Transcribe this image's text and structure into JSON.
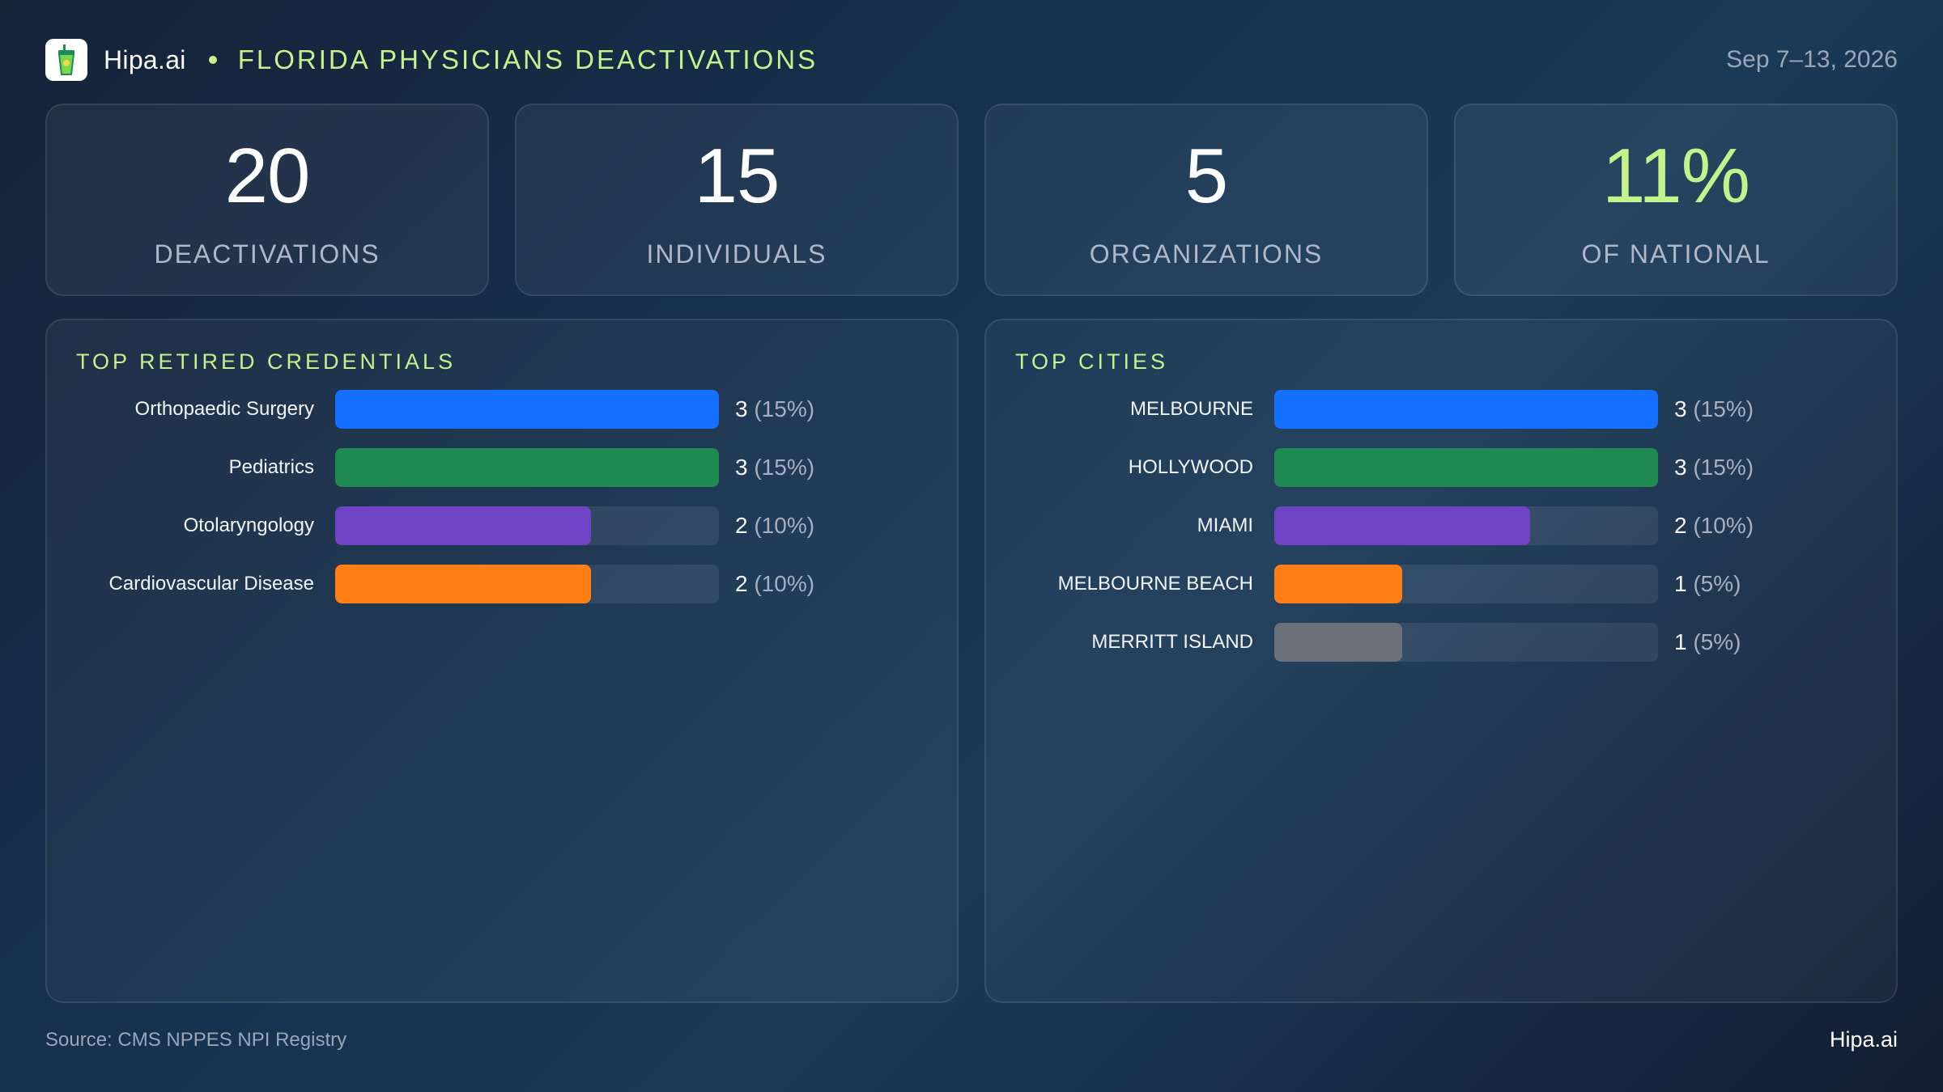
{
  "header": {
    "brand": "Hipa.ai",
    "title": "FLORIDA PHYSICIANS DEACTIVATIONS",
    "date": "Sep 7–13, 2026",
    "accent_color": "#c5f28a"
  },
  "kpis": [
    {
      "value": "20",
      "label": "DEACTIVATIONS"
    },
    {
      "value": "15",
      "label": "INDIVIDUALS"
    },
    {
      "value": "5",
      "label": "ORGANIZATIONS"
    },
    {
      "value": "11%",
      "label": "OF NATIONAL"
    }
  ],
  "chart_data": [
    {
      "type": "bar",
      "orientation": "horizontal",
      "title": "TOP RETIRED CREDENTIALS",
      "categories": [
        "Orthopaedic Surgery",
        "Pediatrics",
        "Otolaryngology",
        "Cardiovascular Disease"
      ],
      "values": [
        3,
        3,
        2,
        2
      ],
      "value_labels": [
        "3",
        "3",
        "2",
        "2"
      ],
      "percent_labels": [
        "(15%)",
        "(15%)",
        "(10%)",
        "(10%)"
      ],
      "colors": [
        "#1570ff",
        "#1e8a52",
        "#6e43c4",
        "#ff7f16"
      ],
      "xlim": [
        0,
        3
      ],
      "grid": false
    },
    {
      "type": "bar",
      "orientation": "horizontal",
      "title": "TOP CITIES",
      "categories": [
        "MELBOURNE",
        "HOLLYWOOD",
        "MIAMI",
        "MELBOURNE BEACH",
        "MERRITT ISLAND"
      ],
      "values": [
        3,
        3,
        2,
        1,
        1
      ],
      "value_labels": [
        "3",
        "3",
        "2",
        "1",
        "1"
      ],
      "percent_labels": [
        "(15%)",
        "(15%)",
        "(10%)",
        "(5%)",
        "(5%)"
      ],
      "colors": [
        "#1570ff",
        "#1e8a52",
        "#6e43c4",
        "#ff7f16",
        "#6b7079"
      ],
      "xlim": [
        0,
        3
      ],
      "grid": false
    }
  ],
  "footer": {
    "source": "Source: CMS NPPES NPI Registry",
    "brand": "Hipa.ai"
  }
}
